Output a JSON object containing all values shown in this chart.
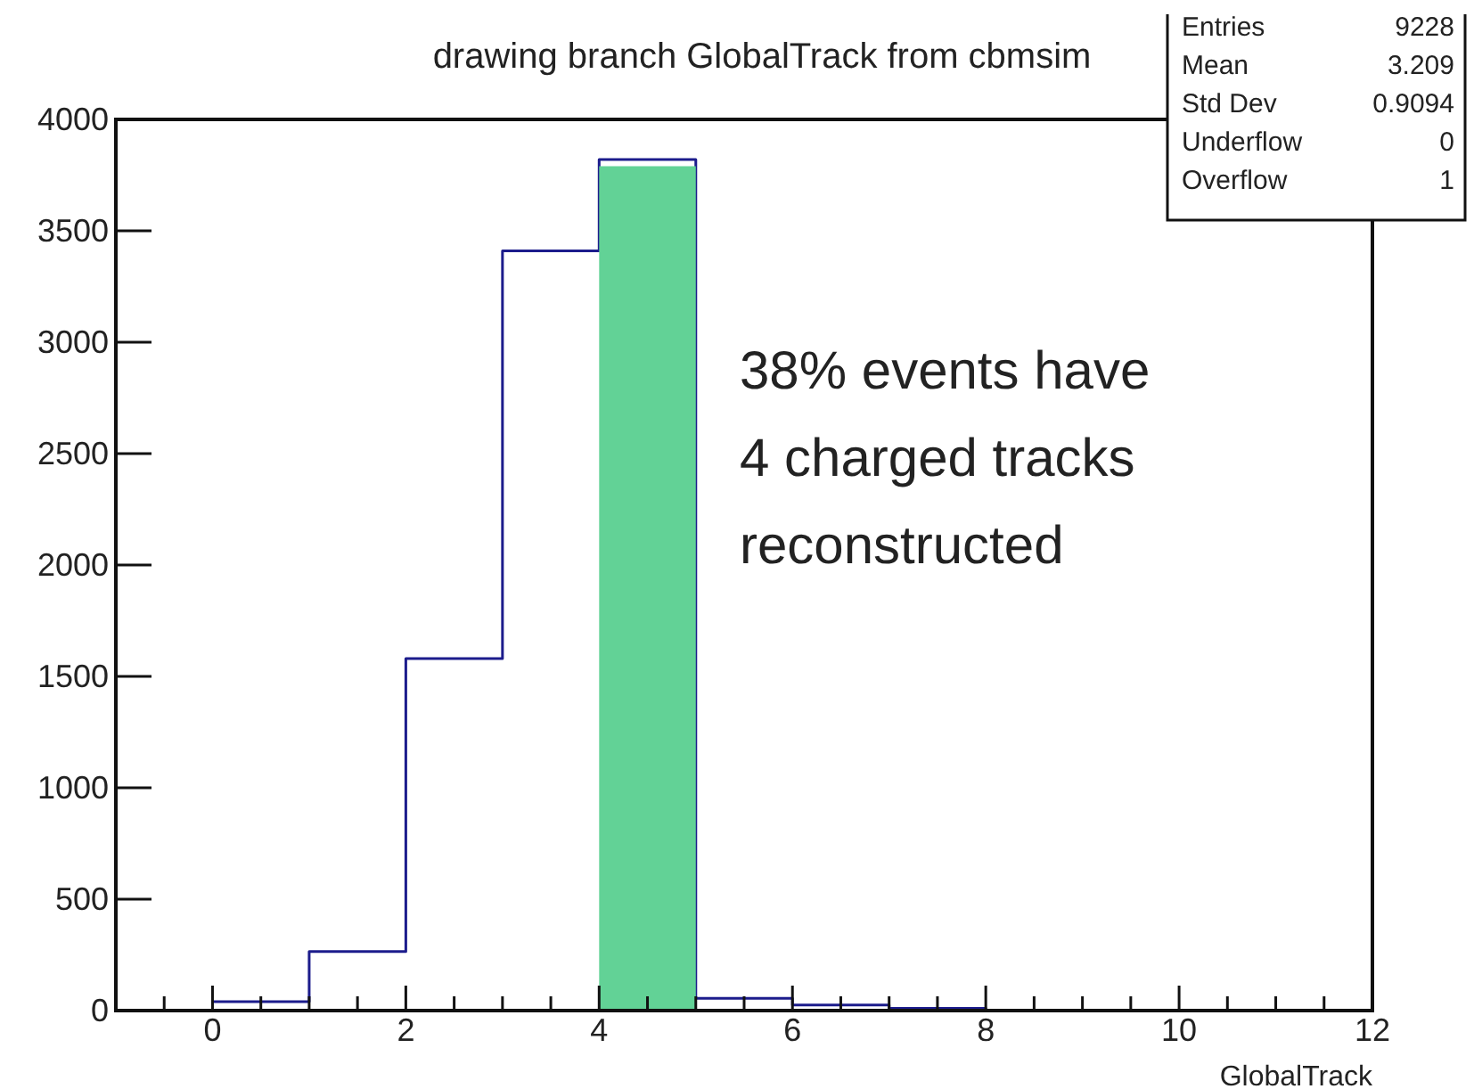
{
  "chart_data": {
    "type": "histogram",
    "title": "drawing branch GlobalTrack from cbmsim",
    "xlabel": "GlobalTrack",
    "bins": [
      4,
      5
    ],
    "series": [
      {
        "type": "step",
        "color": "#1c1c8c",
        "x": [
          0,
          1,
          2,
          3,
          4,
          5,
          6,
          7,
          8
        ],
        "values": [
          40,
          265,
          1580,
          3410,
          3820,
          55,
          25,
          10,
          0
        ]
      },
      {
        "color": "#62d296",
        "values": [
          3790
        ]
      }
    ],
    "xlim": [
      -1,
      12
    ],
    "xticks": [
      {
        "value": -0.5,
        "label": null
      },
      0,
      {
        "value": 0.5,
        "label": null
      },
      {
        "value": 1,
        "label": null
      },
      {
        "value": 1.5,
        "label": null
      },
      2,
      {
        "value": 2.5,
        "label": null
      },
      {
        "value": 3,
        "label": null
      },
      {
        "value": 3.5,
        "label": null
      },
      4,
      {
        "value": 4.5,
        "label": null
      },
      {
        "value": 5,
        "label": null
      },
      {
        "value": 5.5,
        "label": null
      },
      6,
      {
        "value": 6.5,
        "label": null
      },
      {
        "value": 7,
        "label": null
      },
      {
        "value": 7.5,
        "label": null
      },
      8,
      {
        "value": 8.5,
        "label": null
      },
      {
        "value": 9,
        "label": null
      },
      {
        "value": 9.5,
        "label": null
      },
      10,
      {
        "value": 10.5,
        "label": null
      },
      {
        "value": 11,
        "label": null
      },
      {
        "value": 11.5,
        "label": null
      },
      12
    ],
    "ylim": [
      0,
      4000
    ],
    "yticks": [
      0,
      500,
      1000,
      1500,
      2000,
      2500,
      3000,
      3500,
      4000
    ],
    "annotations": [
      "38% events have 4 charged tracks reconstructed",
      "Entries 9228",
      "Mean 3.209",
      "Std Dev 0.9094",
      "Underflow 0",
      "Overflow 1"
    ]
  }
}
